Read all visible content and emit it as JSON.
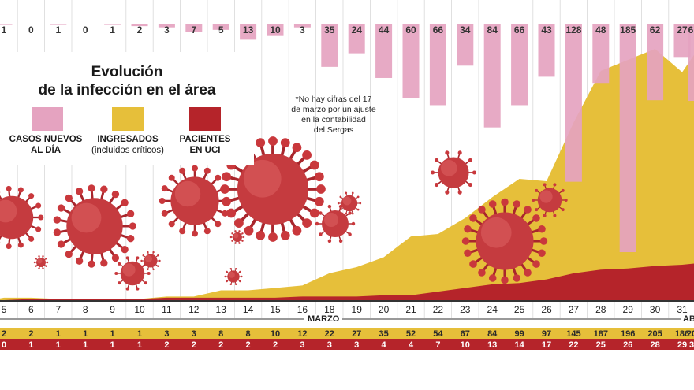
{
  "legend": {
    "title_line1": "Evolución",
    "title_line2": "de la infección en el área",
    "new_cases_line1": "CASOS NUEVOS",
    "new_cases_line2": "AL DÍA",
    "hospitalized_line1": "INGRESADOS",
    "hospitalized_line2": "(incluidos críticos)",
    "icu_line1": "PACIENTES",
    "icu_line2": "EN UCI"
  },
  "note": {
    "line1": "*No hay cifras del 17",
    "line2": "de marzo por un ajuste",
    "line3": "en la contabilidad",
    "line4": "del Sergas"
  },
  "axis": {
    "month_march": "MARZO",
    "month_april_partial": "AB"
  },
  "colors": {
    "new_cases": "#e5a3c0",
    "hospitalized": "#e6bf3a",
    "icu": "#b5242a",
    "virus": "#c0392b"
  },
  "chart_data": {
    "type": "bar+area",
    "title": "Evolución de la infección en el área",
    "days": [
      "5",
      "6",
      "7",
      "8",
      "9",
      "10",
      "11",
      "12",
      "13",
      "14",
      "15",
      "16",
      "18",
      "19",
      "20",
      "21",
      "22",
      "23",
      "24",
      "25",
      "26",
      "27",
      "28",
      "29",
      "30",
      "31"
    ],
    "series": [
      {
        "name": "CASOS NUEVOS AL DÍA",
        "kind": "bar",
        "labels": [
          "1",
          "0",
          "1",
          "0",
          "1",
          "2",
          "3",
          "7",
          "5",
          "13",
          "10",
          "3",
          "35",
          "24",
          "44",
          "60",
          "66",
          "34",
          "84",
          "66",
          "43",
          "128",
          "48",
          "185",
          "62",
          "27"
        ],
        "values": [
          1,
          0,
          1,
          0,
          1,
          2,
          3,
          7,
          5,
          13,
          10,
          3,
          35,
          24,
          44,
          60,
          66,
          34,
          84,
          66,
          43,
          128,
          48,
          185,
          62,
          27
        ]
      },
      {
        "name": "INGRESADOS (incluidos críticos)",
        "kind": "area",
        "labels": [
          "2",
          "2",
          "1",
          "1",
          "1",
          "1",
          "3",
          "3",
          "8",
          "8",
          "10",
          "12",
          "22",
          "27",
          "35",
          "52",
          "54",
          "67",
          "84",
          "99",
          "97",
          "145",
          "187",
          "196",
          "205",
          "186"
        ],
        "values": [
          2,
          2,
          1,
          1,
          1,
          1,
          3,
          3,
          8,
          8,
          10,
          12,
          22,
          27,
          35,
          52,
          54,
          67,
          84,
          99,
          97,
          145,
          187,
          196,
          205,
          186
        ]
      },
      {
        "name": "PACIENTES EN UCI",
        "kind": "area",
        "labels": [
          "0",
          "1",
          "1",
          "1",
          "1",
          "1",
          "2",
          "2",
          "2",
          "2",
          "2",
          "3",
          "3",
          "3",
          "4",
          "4",
          "7",
          "10",
          "13",
          "14",
          "17",
          "22",
          "25",
          "26",
          "28",
          "29"
        ],
        "values": [
          0,
          1,
          1,
          1,
          1,
          1,
          2,
          2,
          2,
          2,
          2,
          3,
          3,
          3,
          4,
          4,
          7,
          10,
          13,
          14,
          17,
          22,
          25,
          26,
          28,
          29
        ]
      }
    ],
    "partial_next": {
      "new_cases_label": "6",
      "hospitalized_label": "20",
      "icu_label": "3"
    },
    "xlabel": "MARZO",
    "ylim_cases": [
      0,
      185
    ],
    "ylim_admitted": [
      0,
      205
    ],
    "note": "*No hay cifras del 17 de marzo por un ajuste en la contabilidad del Sergas"
  }
}
